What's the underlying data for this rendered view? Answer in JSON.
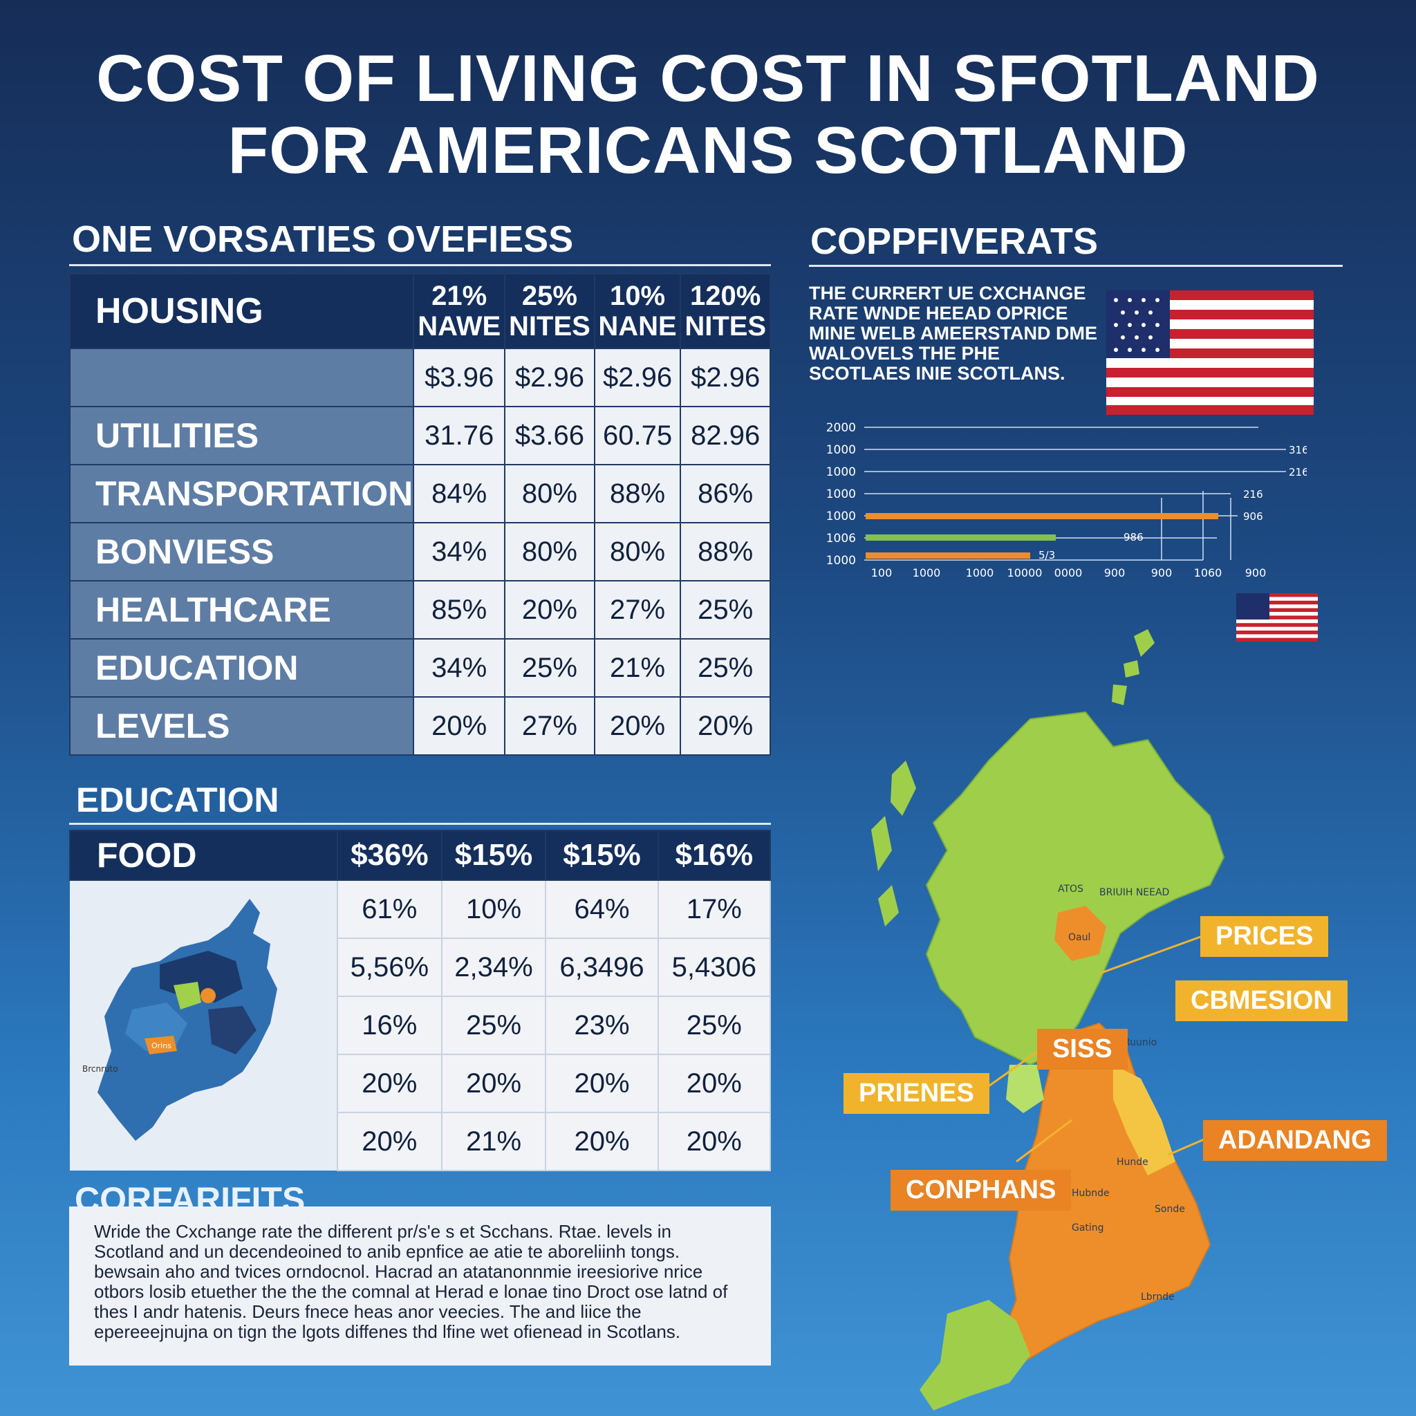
{
  "title_line1": "COST OF LIVING COST IN SFOTLAND",
  "title_line2": "FOR AMERICANS SCOTLAND",
  "section1_title": "ONE VORSATIES OVEFIESS",
  "section2_title": "EDUCATION",
  "section3_title": "CORFARIFITS",
  "right_title": "COPPFIVERATS",
  "table1": {
    "header_label": "HOUSING",
    "columns": [
      {
        "l1": "21%",
        "l2": "NAWE"
      },
      {
        "l1": "25%",
        "l2": "NITES"
      },
      {
        "l1": "10%",
        "l2": "NANE"
      },
      {
        "l1": "120%",
        "l2": "NITES"
      }
    ],
    "rows": [
      {
        "label": "",
        "values": [
          "$3.96",
          "$2.96",
          "$2.96",
          "$2.96"
        ]
      },
      {
        "label": "UTILITIES",
        "values": [
          "31.76",
          "$3.66",
          "60.75",
          "82.96"
        ]
      },
      {
        "label": "TRANSPORTATION",
        "values": [
          "84%",
          "80%",
          "88%",
          "86%"
        ]
      },
      {
        "label": "BONVIESS",
        "values": [
          "34%",
          "80%",
          "80%",
          "88%"
        ]
      },
      {
        "label": "HEALTHCARE",
        "values": [
          "85%",
          "20%",
          "27%",
          "25%"
        ]
      },
      {
        "label": "EDUCATION",
        "values": [
          "34%",
          "25%",
          "21%",
          "25%"
        ]
      },
      {
        "label": "LEVELS",
        "values": [
          "20%",
          "27%",
          "20%",
          "20%"
        ]
      }
    ]
  },
  "table2": {
    "header_label": "FOOD",
    "columns": [
      "$36%",
      "$15%",
      "$15%",
      "$16%"
    ],
    "rows": [
      [
        "61%",
        "10%",
        "64%",
        "17%"
      ],
      [
        "5,56%",
        "2,34%",
        "6,3496",
        "5,4306"
      ],
      [
        "16%",
        "25%",
        "23%",
        "25%"
      ],
      [
        "20%",
        "20%",
        "20%",
        "20%"
      ],
      [
        "20%",
        "21%",
        "20%",
        "20%"
      ]
    ],
    "map_labels": [
      "Brcnruto",
      "Orins"
    ]
  },
  "notes_text": "Wride the Cxchange rate the different pr/s'e s et Scchans. Rtae. levels in Scotland and un decendeoined to anib epnfice ae atie te aboreliinh tongs. bewsain aho and tvices orndocnol. Hacrad an atatanonnmie ireesiorive nrice otbors losib etuether the the the comnal at Herad e lonae tino Droct ose latnd of thes I andr hatenis. Deurs fnece heas anor veecies. The and liice the epereeejnujna on tign the lgots diffenes thd lfine wet ofienead in Scotlans.",
  "rate_text": "THE CURRERT UE CXCHANGE RATE WNDE HEEAD OPRICE MINE WELB AMEERSTAND DME WALOVELS THE PHE SCOTLAES INIE SCOTLANS.",
  "bar_chart": {
    "y_labels": [
      "2000",
      "1000",
      "1000",
      "1000",
      "1000",
      "1006",
      "1000"
    ],
    "x_labels": [
      "100",
      "1000",
      "1000",
      "10000",
      "0000",
      "900",
      "900",
      "1060",
      "900"
    ],
    "value_labels": [
      "316",
      "216",
      "216",
      "906",
      "986",
      "5/3"
    ]
  },
  "scotland_callouts": [
    "PRICES",
    "CBMESION",
    "SISS",
    "PRIENES",
    "ADANDANG",
    "CONPHANS"
  ],
  "map_region_labels": [
    "ATOS",
    "BRIUIH NEEAD",
    "Oaul",
    "Ruunio",
    "Hunde",
    "Hubnde",
    "Sonde",
    "Gating",
    "Lbrnde"
  ],
  "colors": {
    "bg_top": "#162d57",
    "bg_bottom": "#3f93d4",
    "header_navy": "#152f5c",
    "row_label": "#5e7da4",
    "map_green": "#9fcf4a",
    "map_orange": "#ee8e2a",
    "callout_yellow": "#f1b32c",
    "callout_orange": "#e98324"
  }
}
